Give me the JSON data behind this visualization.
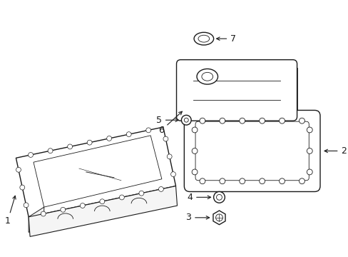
{
  "background_color": "#ffffff",
  "line_color": "#1a1a1a",
  "lw": 1.0,
  "tlw": 0.6,
  "fs": 9,
  "figsize": [
    4.89,
    3.6
  ],
  "dpi": 100
}
